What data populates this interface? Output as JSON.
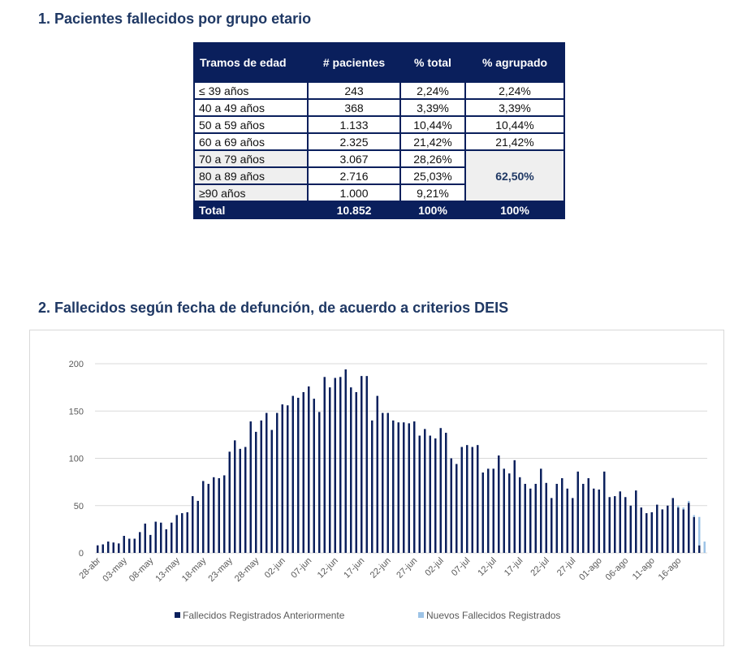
{
  "section1": {
    "title": "1.  Pacientes fallecidos por grupo etario"
  },
  "section2": {
    "title": "2.  Fallecidos según fecha de defunción, de acuerdo a criterios DEIS"
  },
  "table": {
    "headers": [
      "Tramos de edad",
      "# pacientes",
      "% total",
      "% agrupado"
    ],
    "rows": [
      {
        "label": "≤ 39 años",
        "patients": "243",
        "pct": "2,24%",
        "grouped": "2,24%"
      },
      {
        "label": "40 a 49 años",
        "patients": "368",
        "pct": "3,39%",
        "grouped": "3,39%"
      },
      {
        "label": "50 a 59 años",
        "patients": "1.133",
        "pct": "10,44%",
        "grouped": "10,44%"
      },
      {
        "label": "60 a 69 años",
        "patients": "2.325",
        "pct": "21,42%",
        "grouped": "21,42%"
      },
      {
        "label": "70 a 79 años",
        "patients": "3.067",
        "pct": "28,26%",
        "grouped": "62,50%"
      },
      {
        "label": "80 a 89 años",
        "patients": "2.716",
        "pct": "25,03%"
      },
      {
        "label": "≥90 años",
        "patients": "1.000",
        "pct": "9,21%"
      }
    ],
    "total": {
      "label": "Total",
      "patients": "10.852",
      "pct": "100%",
      "grouped": "100%"
    },
    "colors": {
      "header_bg": "#0a1f5c",
      "shade_bg": "#efefef"
    }
  },
  "chart_data": {
    "type": "bar",
    "title": "",
    "xlabel": "",
    "ylabel": "",
    "ylim": [
      0,
      200
    ],
    "yticks": [
      0,
      50,
      100,
      150,
      200
    ],
    "grid": true,
    "legend_position": "bottom",
    "x_tick_labels": [
      "28-abr",
      "03-may",
      "08-may",
      "13-may",
      "18-may",
      "23-may",
      "28-may",
      "02-jun",
      "07-jun",
      "12-jun",
      "17-jun",
      "22-jun",
      "27-jun",
      "02-jul",
      "07-jul",
      "12-jul",
      "17-jul",
      "22-jul",
      "27-jul",
      "01-ago",
      "06-ago",
      "11-ago",
      "16-ago"
    ],
    "categories": [
      "28-abr",
      "29-abr",
      "30-abr",
      "01-may",
      "02-may",
      "03-may",
      "04-may",
      "05-may",
      "06-may",
      "07-may",
      "08-may",
      "09-may",
      "10-may",
      "11-may",
      "12-may",
      "13-may",
      "14-may",
      "15-may",
      "16-may",
      "17-may",
      "18-may",
      "19-may",
      "20-may",
      "21-may",
      "22-may",
      "23-may",
      "24-may",
      "25-may",
      "26-may",
      "27-may",
      "28-may",
      "29-may",
      "30-may",
      "31-may",
      "01-jun",
      "02-jun",
      "03-jun",
      "04-jun",
      "05-jun",
      "06-jun",
      "07-jun",
      "08-jun",
      "09-jun",
      "10-jun",
      "11-jun",
      "12-jun",
      "13-jun",
      "14-jun",
      "15-jun",
      "16-jun",
      "17-jun",
      "18-jun",
      "19-jun",
      "20-jun",
      "21-jun",
      "22-jun",
      "23-jun",
      "24-jun",
      "25-jun",
      "26-jun",
      "27-jun",
      "28-jun",
      "29-jun",
      "30-jun",
      "01-jul",
      "02-jul",
      "03-jul",
      "04-jul",
      "05-jul",
      "06-jul",
      "07-jul",
      "08-jul",
      "09-jul",
      "10-jul",
      "11-jul",
      "12-jul",
      "13-jul",
      "14-jul",
      "15-jul",
      "16-jul",
      "17-jul",
      "18-jul",
      "19-jul",
      "20-jul",
      "21-jul",
      "22-jul",
      "23-jul",
      "24-jul",
      "25-jul",
      "26-jul",
      "27-jul",
      "28-jul",
      "29-jul",
      "30-jul",
      "31-jul",
      "01-ago",
      "02-ago",
      "03-ago",
      "04-ago",
      "05-ago",
      "06-ago",
      "07-ago",
      "08-ago",
      "09-ago",
      "10-ago",
      "11-ago",
      "12-ago",
      "13-ago",
      "14-ago",
      "15-ago",
      "16-ago",
      "17-ago",
      "18-ago",
      "19-ago",
      "20-ago",
      "21-ago"
    ],
    "series": [
      {
        "name": "Fallecidos Registrados Anteriormente",
        "color": "#0a1f5c",
        "values": [
          8,
          9,
          12,
          11,
          10,
          18,
          15,
          15,
          22,
          31,
          19,
          33,
          32,
          25,
          32,
          40,
          42,
          43,
          60,
          55,
          76,
          73,
          80,
          79,
          82,
          107,
          119,
          110,
          112,
          139,
          128,
          140,
          148,
          130,
          148,
          157,
          156,
          166,
          164,
          170,
          176,
          163,
          149,
          186,
          175,
          185,
          186,
          194,
          175,
          170,
          187,
          187,
          140,
          166,
          148,
          148,
          140,
          138,
          138,
          137,
          139,
          124,
          131,
          124,
          121,
          132,
          127,
          100,
          94,
          112,
          114,
          112,
          114,
          85,
          89,
          89,
          103,
          89,
          84,
          98,
          80,
          73,
          68,
          73,
          89,
          74,
          58,
          73,
          79,
          68,
          58,
          86,
          73,
          79,
          68,
          67,
          86,
          59,
          60,
          65,
          59,
          50,
          66,
          48,
          42,
          43,
          51,
          46,
          50,
          58,
          48,
          46,
          53,
          38,
          8,
          0
        ],
        "new_values": [
          0,
          0,
          0,
          0,
          0,
          0,
          0,
          0,
          0,
          0,
          0,
          0,
          0,
          0,
          0,
          0,
          0,
          0,
          0,
          0,
          0,
          0,
          0,
          0,
          0,
          0,
          0,
          0,
          0,
          0,
          0,
          0,
          0,
          0,
          0,
          0,
          0,
          0,
          0,
          0,
          0,
          0,
          0,
          0,
          0,
          0,
          0,
          0,
          0,
          0,
          0,
          0,
          0,
          0,
          0,
          0,
          0,
          0,
          0,
          0,
          0,
          0,
          0,
          0,
          0,
          0,
          0,
          0,
          0,
          0,
          0,
          0,
          0,
          0,
          0,
          0,
          0,
          0,
          0,
          0,
          0,
          0,
          0,
          0,
          0,
          0,
          0,
          0,
          0,
          0,
          0,
          0,
          0,
          0,
          0,
          0,
          0,
          0,
          0,
          0,
          0,
          0,
          0,
          0,
          0,
          0,
          0,
          0,
          0,
          0,
          2,
          2,
          2,
          2,
          30,
          12
        ]
      },
      {
        "name": "Nuevos Fallecidos Registrados",
        "color": "#9dc3e6"
      }
    ]
  }
}
